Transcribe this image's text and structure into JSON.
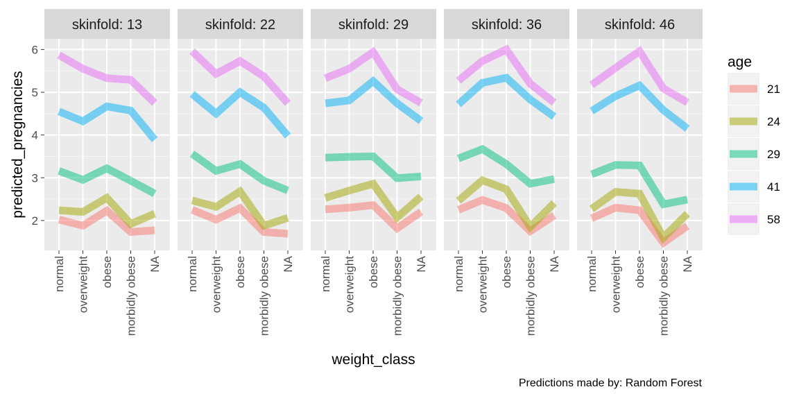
{
  "chart_data": {
    "type": "line",
    "facet_label_prefix": "skinfold: ",
    "facets": [
      {
        "strip_label": "skinfold: 13",
        "series": [
          {
            "name": "21",
            "values": [
              2.02,
              1.88,
              2.23,
              1.73,
              1.77
            ]
          },
          {
            "name": "24",
            "values": [
              2.24,
              2.2,
              2.53,
              1.92,
              2.16
            ]
          },
          {
            "name": "29",
            "values": [
              3.16,
              2.95,
              3.22,
              2.93,
              2.63
            ]
          },
          {
            "name": "41",
            "values": [
              4.55,
              4.32,
              4.67,
              4.57,
              3.89
            ]
          },
          {
            "name": "58",
            "values": [
              5.87,
              5.55,
              5.33,
              5.29,
              4.75
            ]
          }
        ]
      },
      {
        "strip_label": "skinfold: 22",
        "series": [
          {
            "name": "21",
            "values": [
              2.25,
              2.02,
              2.29,
              1.73,
              1.69
            ]
          },
          {
            "name": "24",
            "values": [
              2.47,
              2.32,
              2.68,
              1.88,
              2.06
            ]
          },
          {
            "name": "29",
            "values": [
              3.56,
              3.16,
              3.32,
              2.93,
              2.7
            ]
          },
          {
            "name": "41",
            "values": [
              4.96,
              4.5,
              5.0,
              4.64,
              3.98
            ]
          },
          {
            "name": "58",
            "values": [
              5.96,
              5.43,
              5.73,
              5.37,
              4.74
            ]
          }
        ]
      },
      {
        "strip_label": "skinfold: 29",
        "series": [
          {
            "name": "21",
            "values": [
              2.26,
              2.3,
              2.36,
              1.82,
              2.2
            ]
          },
          {
            "name": "24",
            "values": [
              2.53,
              2.7,
              2.86,
              2.07,
              2.56
            ]
          },
          {
            "name": "29",
            "values": [
              3.47,
              3.49,
              3.5,
              2.99,
              3.03
            ]
          },
          {
            "name": "41",
            "values": [
              4.74,
              4.81,
              5.26,
              4.74,
              4.33
            ]
          },
          {
            "name": "58",
            "values": [
              5.33,
              5.55,
              5.94,
              5.07,
              4.75
            ]
          }
        ]
      },
      {
        "strip_label": "skinfold: 36",
        "series": [
          {
            "name": "21",
            "values": [
              2.25,
              2.48,
              2.29,
              1.75,
              2.12
            ]
          },
          {
            "name": "24",
            "values": [
              2.46,
              2.94,
              2.73,
              1.85,
              2.41
            ]
          },
          {
            "name": "29",
            "values": [
              3.45,
              3.67,
              3.32,
              2.86,
              2.97
            ]
          },
          {
            "name": "41",
            "values": [
              4.72,
              5.22,
              5.34,
              4.83,
              4.43
            ]
          },
          {
            "name": "58",
            "values": [
              5.27,
              5.73,
              6.0,
              5.2,
              4.76
            ]
          }
        ]
      },
      {
        "strip_label": "skinfold: 46",
        "series": [
          {
            "name": "21",
            "values": [
              2.05,
              2.3,
              2.24,
              1.48,
              1.87
            ]
          },
          {
            "name": "24",
            "values": [
              2.27,
              2.67,
              2.63,
              1.6,
              2.16
            ]
          },
          {
            "name": "29",
            "values": [
              3.08,
              3.3,
              3.29,
              2.38,
              2.49
            ]
          },
          {
            "name": "41",
            "values": [
              4.56,
              4.91,
              5.16,
              4.58,
              4.15
            ]
          },
          {
            "name": "58",
            "values": [
              5.17,
              5.57,
              5.96,
              5.09,
              4.76
            ]
          }
        ]
      }
    ],
    "x_categories": [
      "normal",
      "overweight",
      "obese",
      "morbidly obese",
      "NA"
    ],
    "y_ticks": [
      2,
      3,
      4,
      5,
      6
    ],
    "ylim": [
      1.3,
      6.25
    ],
    "xlabel": "weight_class",
    "ylabel": "predicted_pregnancies",
    "legend": {
      "title": "age",
      "position": "right",
      "entries": [
        "21",
        "24",
        "29",
        "41",
        "58"
      ]
    },
    "colors": {
      "21": "#F8766D",
      "24": "#A3A500",
      "29": "#00BF7D",
      "41": "#00B0F6",
      "58": "#E76BF3"
    },
    "caption": "Predictions made by: Random Forest",
    "grid": true,
    "panel_background": "#EBEBEB",
    "strip_background": "#D9D9D9"
  }
}
